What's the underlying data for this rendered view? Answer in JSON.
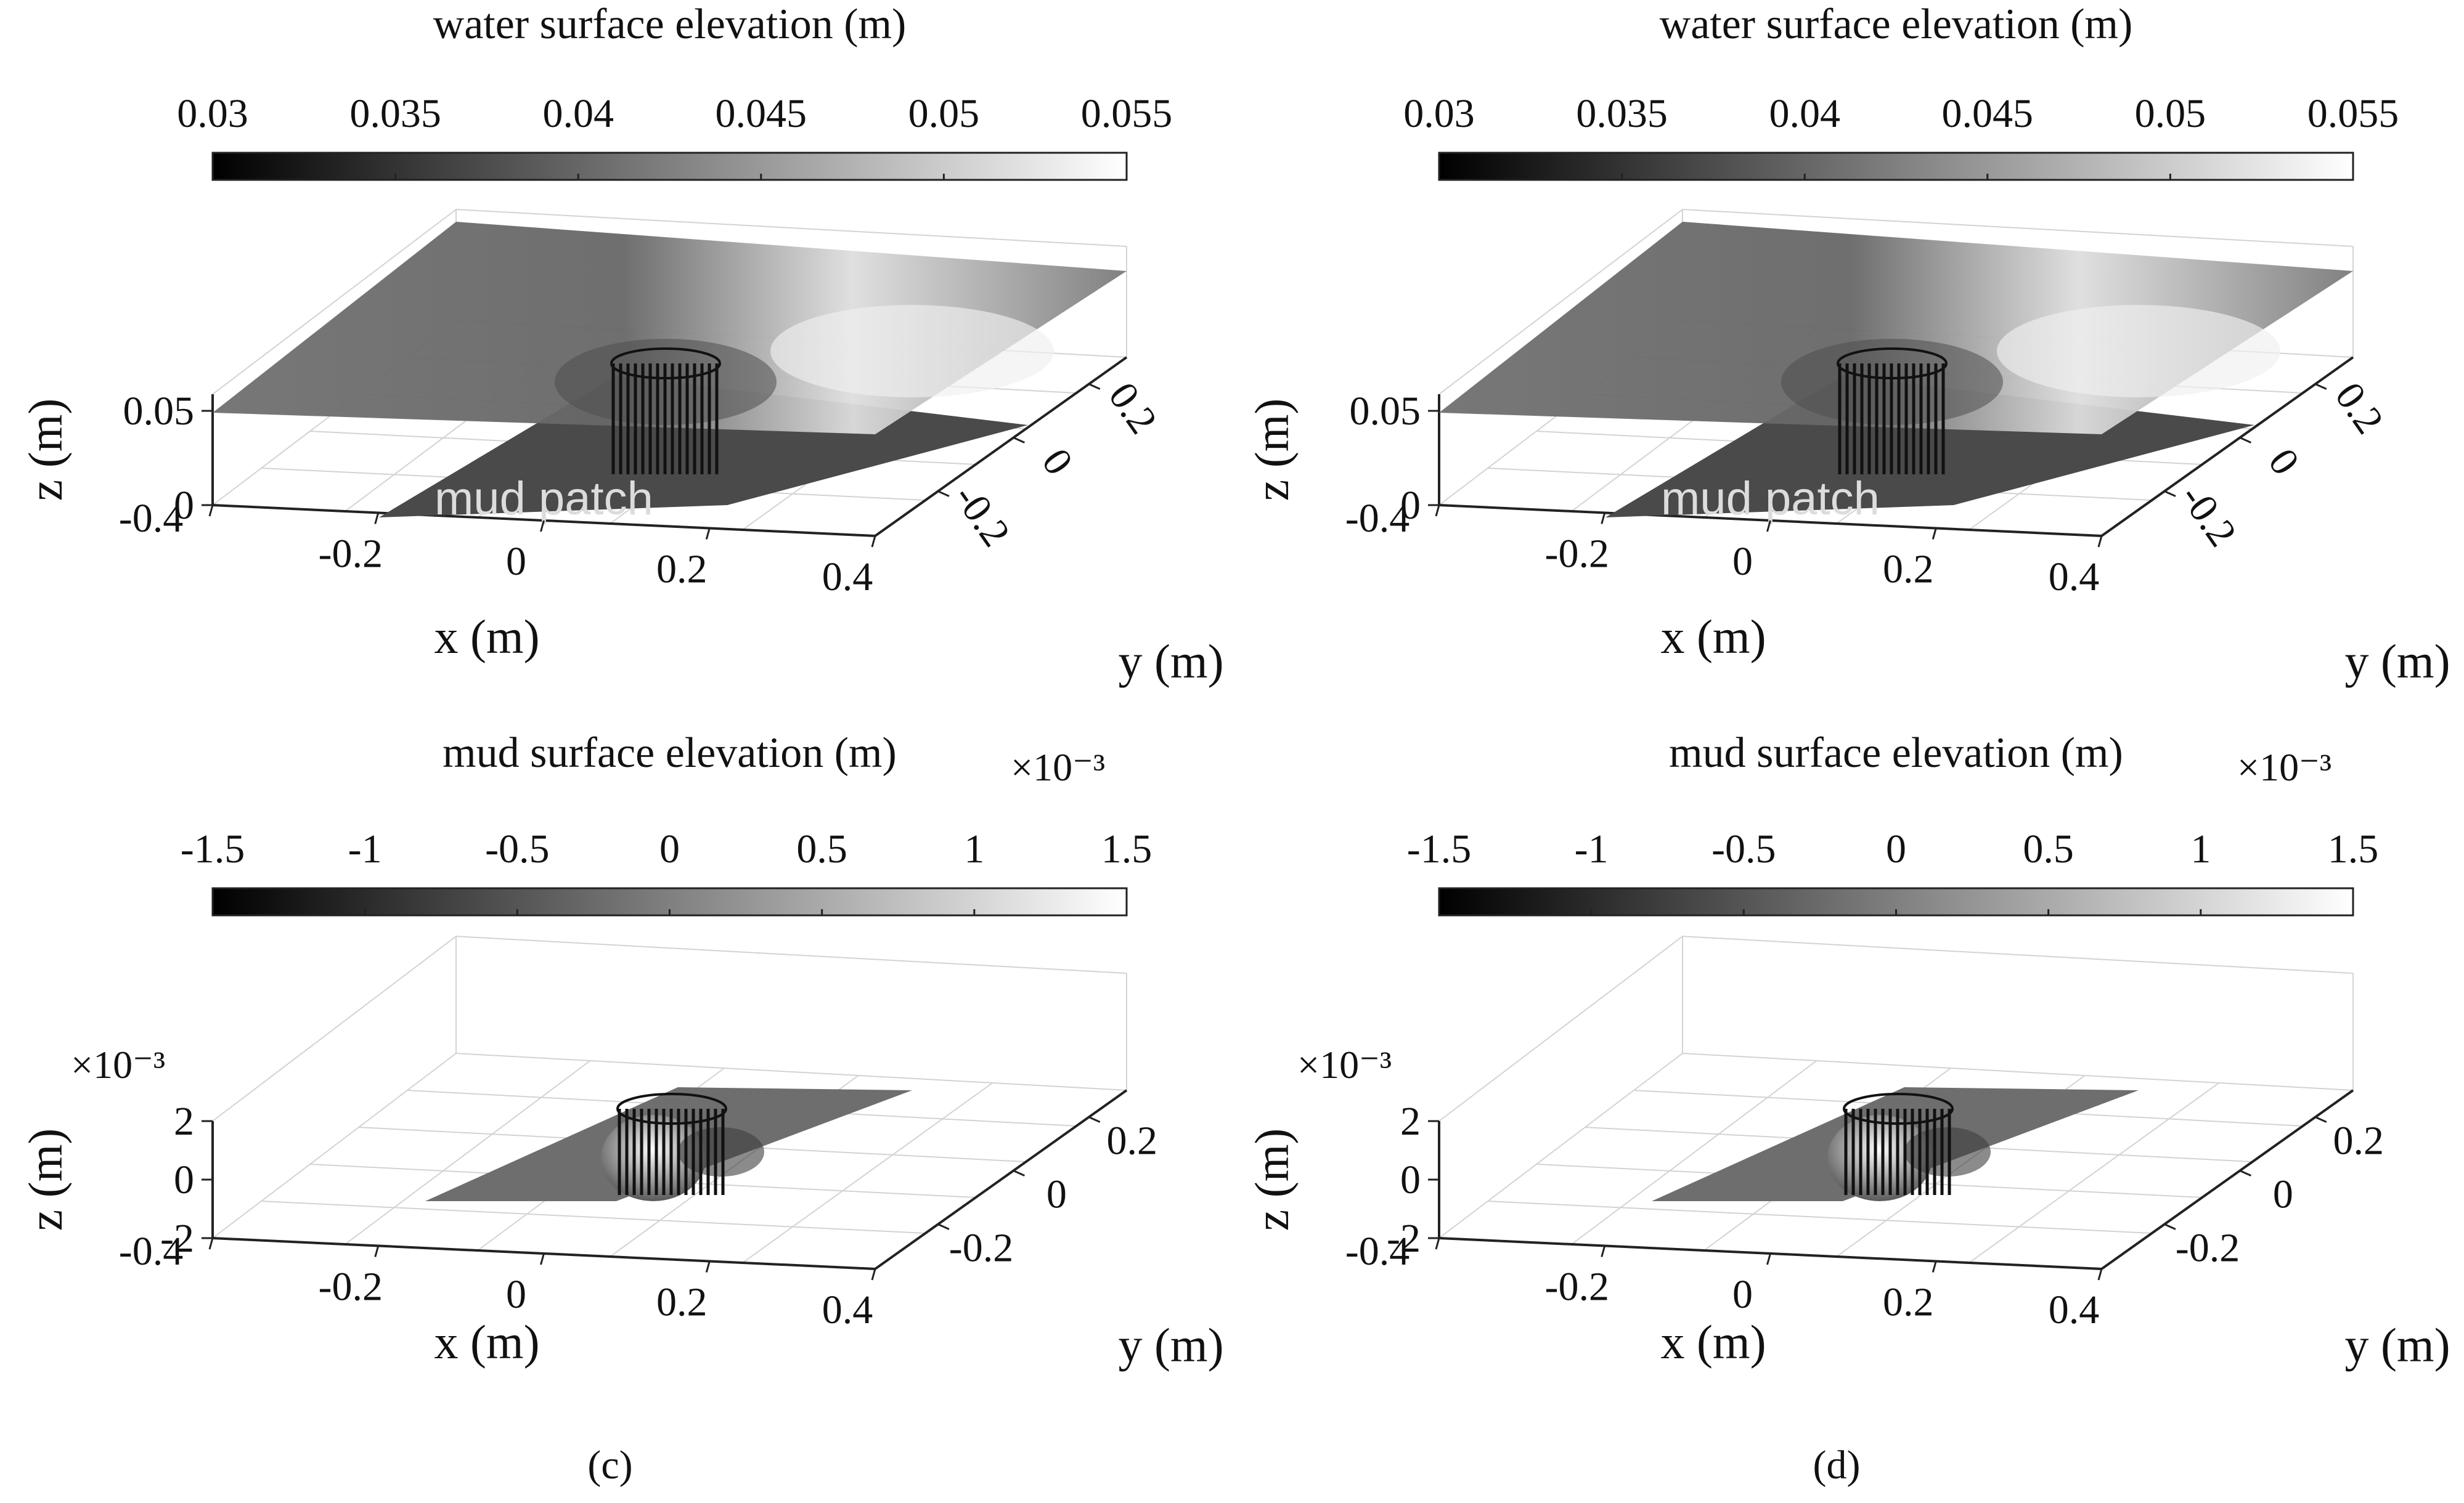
{
  "chart_data": [
    {
      "type": "surface",
      "panel": "a",
      "colorbar": {
        "title": "water surface elevation (m)",
        "ticks": [
          "0.03",
          "0.035",
          "0.04",
          "0.045",
          "0.05",
          "0.055"
        ],
        "range": [
          0.03,
          0.055
        ],
        "multiplier": ""
      },
      "z_ticks": [
        "0",
        "0.05"
      ],
      "z_multiplier": "",
      "x_ticks": [
        "-0.4",
        "-0.2",
        "0",
        "0.2",
        "0.4"
      ],
      "y_ticks": [
        "-0.2",
        "0",
        "0.2"
      ],
      "xlabel": "x (m)",
      "ylabel": "y (m)",
      "zlabel": "z (m)",
      "annotation": "mud patch",
      "caption": ""
    },
    {
      "type": "surface",
      "panel": "b",
      "colorbar": {
        "title": "water surface elevation (m)",
        "ticks": [
          "0.03",
          "0.035",
          "0.04",
          "0.045",
          "0.05",
          "0.055"
        ],
        "range": [
          0.03,
          0.055
        ],
        "multiplier": ""
      },
      "z_ticks": [
        "0",
        "0.05"
      ],
      "z_multiplier": "",
      "x_ticks": [
        "-0.4",
        "-0.2",
        "0",
        "0.2",
        "0.4"
      ],
      "y_ticks": [
        "-0.2",
        "0",
        "0.2"
      ],
      "xlabel": "x (m)",
      "ylabel": "y (m)",
      "zlabel": "z (m)",
      "annotation": "mud patch",
      "caption": ""
    },
    {
      "type": "surface",
      "panel": "c",
      "colorbar": {
        "title": "mud surface elevation (m)",
        "ticks": [
          "-1.5",
          "-1",
          "-0.5",
          "0",
          "0.5",
          "1",
          "1.5"
        ],
        "range": [
          -1.5,
          1.5
        ],
        "multiplier": "×10⁻³"
      },
      "z_ticks": [
        "-2",
        "0",
        "2"
      ],
      "z_multiplier": "×10⁻³",
      "x_ticks": [
        "-0.4",
        "-0.2",
        "0",
        "0.2",
        "0.4"
      ],
      "y_ticks": [
        "-0.2",
        "0",
        "0.2"
      ],
      "xlabel": "x (m)",
      "ylabel": "y (m)",
      "zlabel": "z (m)",
      "annotation": "",
      "caption": "(c)"
    },
    {
      "type": "surface",
      "panel": "d",
      "colorbar": {
        "title": "mud surface elevation (m)",
        "ticks": [
          "-1.5",
          "-1",
          "-0.5",
          "0",
          "0.5",
          "1",
          "1.5"
        ],
        "range": [
          -1.5,
          1.5
        ],
        "multiplier": "×10⁻³"
      },
      "z_ticks": [
        "-2",
        "0",
        "2"
      ],
      "z_multiplier": "×10⁻³",
      "x_ticks": [
        "-0.4",
        "-0.2",
        "0",
        "0.2",
        "0.4"
      ],
      "y_ticks": [
        "-0.2",
        "0",
        "0.2"
      ],
      "xlabel": "x (m)",
      "ylabel": "y (m)",
      "zlabel": "z (m)",
      "annotation": "",
      "caption": "(d)"
    }
  ],
  "colors": {
    "gradient_low": "#000000",
    "gradient_high": "#ffffff",
    "surface": "#6f6f6f",
    "mud_patch": "#4a4a4a"
  }
}
